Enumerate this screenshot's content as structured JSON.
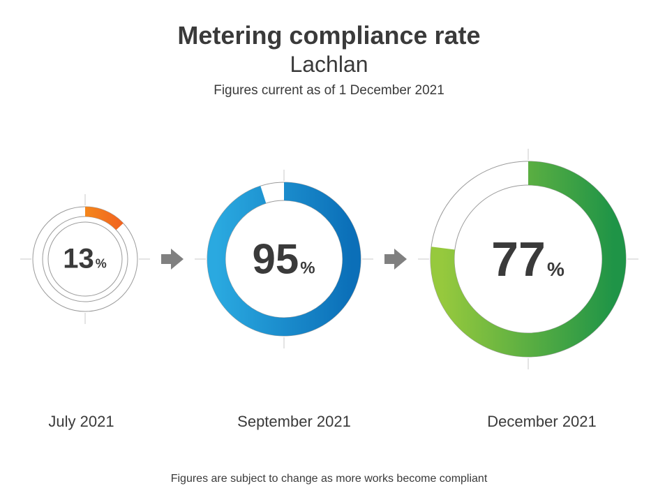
{
  "header": {
    "title": "Metering compliance rate",
    "subtitle": "Lachlan",
    "dateline": "Figures current as of 1 December 2021"
  },
  "footer": {
    "note": "Figures are subject to change as more works become compliant"
  },
  "background_color": "#ffffff",
  "text_color": "#3a3a3a",
  "arrow": {
    "color": "#808080",
    "width": 40,
    "height": 40
  },
  "donuts": [
    {
      "label": "July 2021",
      "value": 13,
      "outer_diameter": 150,
      "ring_thickness": 14,
      "inner_ring_gap": 8,
      "inner_ring_stroke": "#9a9a9a",
      "inner_ring_width": 1,
      "track_stroke": "#9a9a9a",
      "track_width": 1,
      "crosshair_color": "#c8c8c8",
      "gradient_start": "#f8b214",
      "gradient_end": "#f05a22",
      "number_fontsize": 40,
      "percent_fontsize": 18,
      "label_width": 210
    },
    {
      "label": "September 2021",
      "value": 95,
      "outer_diameter": 220,
      "ring_thickness": 26,
      "inner_ring_gap": 0,
      "inner_ring_stroke": "none",
      "inner_ring_width": 0,
      "track_stroke": "#9a9a9a",
      "track_width": 1,
      "crosshair_color": "#c8c8c8",
      "gradient_start": "#2aa9e0",
      "gradient_end": "#0b6fb8",
      "number_fontsize": 60,
      "percent_fontsize": 24,
      "label_width": 280
    },
    {
      "label": "December 2021",
      "value": 77,
      "outer_diameter": 280,
      "ring_thickness": 34,
      "inner_ring_gap": 0,
      "inner_ring_stroke": "none",
      "inner_ring_width": 0,
      "track_stroke": "#9a9a9a",
      "track_width": 1,
      "crosshair_color": "#c8c8c8",
      "gradient_start": "#96c93d",
      "gradient_end": "#1f9447",
      "number_fontsize": 70,
      "percent_fontsize": 28,
      "label_width": 310
    }
  ]
}
